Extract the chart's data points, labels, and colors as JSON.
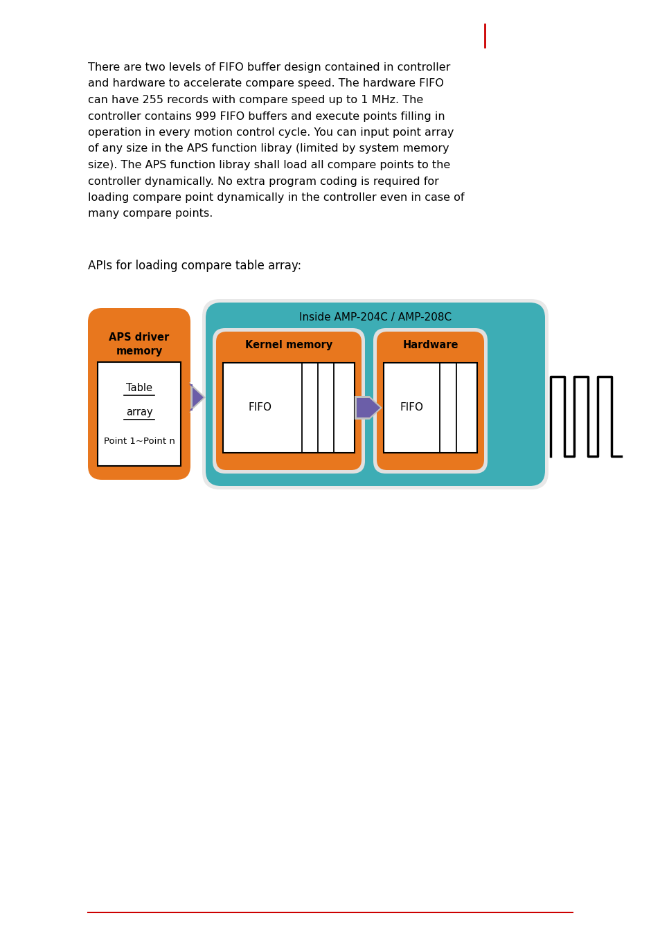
{
  "bg_color": "#ffffff",
  "orange_color": "#E8771E",
  "teal_color": "#3DADB5",
  "white_color": "#ffffff",
  "purple_color": "#6B5EA8",
  "black_color": "#000000",
  "gray_arrow_color": "#C0C0C0",
  "apis_text": "APIs for loading compare table array:",
  "aps_driver_label1": "APS driver",
  "aps_driver_label2": "memory",
  "inside_label": "Inside AMP-204C / AMP-208C",
  "kernel_label": "Kernel memory",
  "hardware_label": "Hardware",
  "fifo_label1": "FIFO",
  "fifo_label2": "FIFO",
  "table_label": "Table",
  "array_label": "array",
  "point_label": "Point 1~Point n",
  "para_line1": "There are two levels of FIFO buffer design contained in controller",
  "para_line2": "and hardware to accelerate compare speed. The hardware FIFO",
  "para_line3": "can have 255 records with compare speed up to 1 MHz. The",
  "para_line4": "controller contains 999 FIFO buffers and execute points filling in",
  "para_line5": "operation in every motion control cycle. You can input point array",
  "para_line6": "of any size in the APS function libray (limited by system memory",
  "para_line7": "size). The APS function libray shall load all compare points to the",
  "para_line8": "controller dynamically. No extra program coding is required for",
  "para_line9": "loading compare point dynamically in the controller even in case of",
  "para_line10": "many compare points."
}
